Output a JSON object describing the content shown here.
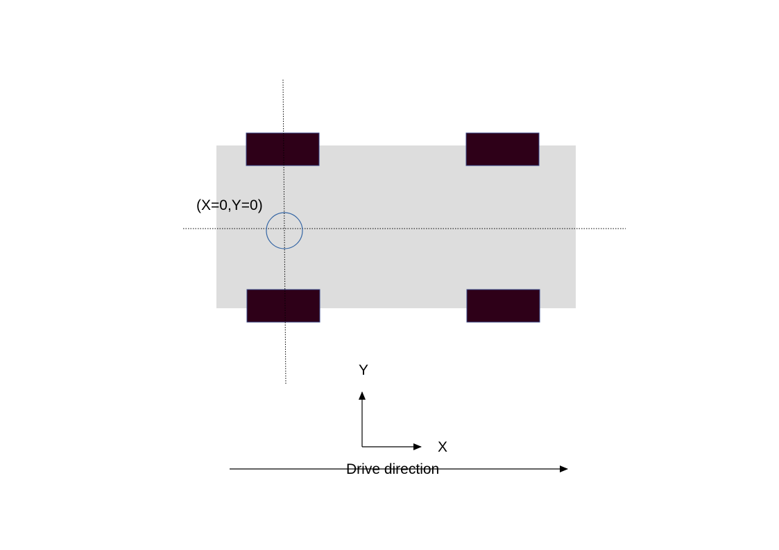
{
  "diagram": {
    "origin_label": "(X=0,Y=0)",
    "axis_y_label": "Y",
    "axis_x_label": "X",
    "drive_label": "Drive direction"
  },
  "colors": {
    "vehicle_body": "#dddddd",
    "wheel_fill": "#2e0018",
    "wheel_border": "#3b4a8a",
    "origin_circle": "#3465a4",
    "guide_lines": "#000000"
  }
}
